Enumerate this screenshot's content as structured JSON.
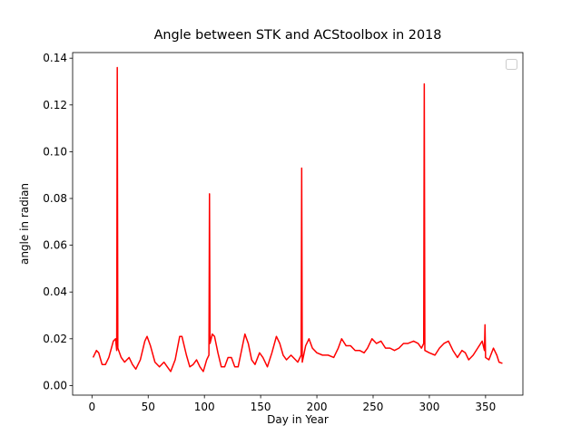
{
  "chart_data": {
    "type": "line",
    "title": "Angle between STK and ACStoolbox in 2018",
    "x_label": "Day in Year",
    "y_label": "angle in radian",
    "x": [
      1,
      4,
      6,
      9,
      12,
      15,
      19,
      21,
      22,
      22.5,
      23,
      26,
      29,
      33,
      36,
      39,
      43,
      47,
      49,
      52,
      56,
      60,
      64,
      67,
      70,
      74,
      78,
      80,
      84,
      87,
      90,
      93,
      96,
      99,
      102,
      104,
      104.5,
      105,
      107,
      109,
      112,
      115,
      118,
      121,
      124,
      127,
      130,
      133,
      136,
      139,
      142,
      145,
      149,
      152,
      156,
      160,
      164,
      167,
      170,
      173,
      177,
      181,
      183,
      186,
      186.5,
      187,
      190,
      193,
      196,
      200,
      205,
      210,
      215,
      219,
      222,
      226,
      230,
      234,
      238,
      242,
      245,
      249,
      253,
      257,
      261,
      265,
      269,
      273,
      277,
      281,
      286,
      290,
      293,
      295,
      295.5,
      296,
      300,
      305,
      309,
      313,
      317,
      321,
      325,
      329,
      332,
      335,
      339,
      343,
      347,
      349,
      349.5,
      350,
      353,
      357,
      360,
      362,
      365
    ],
    "series": [
      {
        "color": "#ff0000",
        "values": [
          0.012,
          0.015,
          0.014,
          0.009,
          0.009,
          0.012,
          0.019,
          0.02,
          0.015,
          0.136,
          0.016,
          0.012,
          0.01,
          0.012,
          0.009,
          0.007,
          0.011,
          0.019,
          0.021,
          0.017,
          0.01,
          0.008,
          0.01,
          0.008,
          0.006,
          0.011,
          0.021,
          0.021,
          0.013,
          0.008,
          0.009,
          0.011,
          0.008,
          0.006,
          0.011,
          0.013,
          0.082,
          0.018,
          0.022,
          0.021,
          0.014,
          0.008,
          0.008,
          0.012,
          0.012,
          0.008,
          0.008,
          0.015,
          0.022,
          0.018,
          0.011,
          0.009,
          0.014,
          0.012,
          0.008,
          0.014,
          0.021,
          0.018,
          0.013,
          0.011,
          0.013,
          0.011,
          0.01,
          0.013,
          0.093,
          0.01,
          0.017,
          0.02,
          0.016,
          0.014,
          0.013,
          0.013,
          0.012,
          0.016,
          0.02,
          0.017,
          0.017,
          0.015,
          0.015,
          0.014,
          0.016,
          0.02,
          0.018,
          0.019,
          0.016,
          0.016,
          0.015,
          0.016,
          0.018,
          0.018,
          0.019,
          0.018,
          0.016,
          0.018,
          0.129,
          0.015,
          0.014,
          0.013,
          0.016,
          0.018,
          0.019,
          0.015,
          0.012,
          0.015,
          0.014,
          0.011,
          0.013,
          0.016,
          0.019,
          0.015,
          0.026,
          0.012,
          0.011,
          0.016,
          0.013,
          0.01,
          0.0095
        ]
      }
    ],
    "xlim": [
      -17.2,
      383.2
    ],
    "ylim": [
      -0.0041,
      0.1424
    ],
    "xticks": [
      0,
      50,
      100,
      150,
      200,
      250,
      300,
      350
    ],
    "yticks": [
      {
        "value": 0,
        "label": "0.00"
      },
      0.02,
      0.04,
      0.06,
      0.08,
      {
        "value": 0.1,
        "label": "0.10"
      },
      0.12,
      0.14
    ]
  }
}
